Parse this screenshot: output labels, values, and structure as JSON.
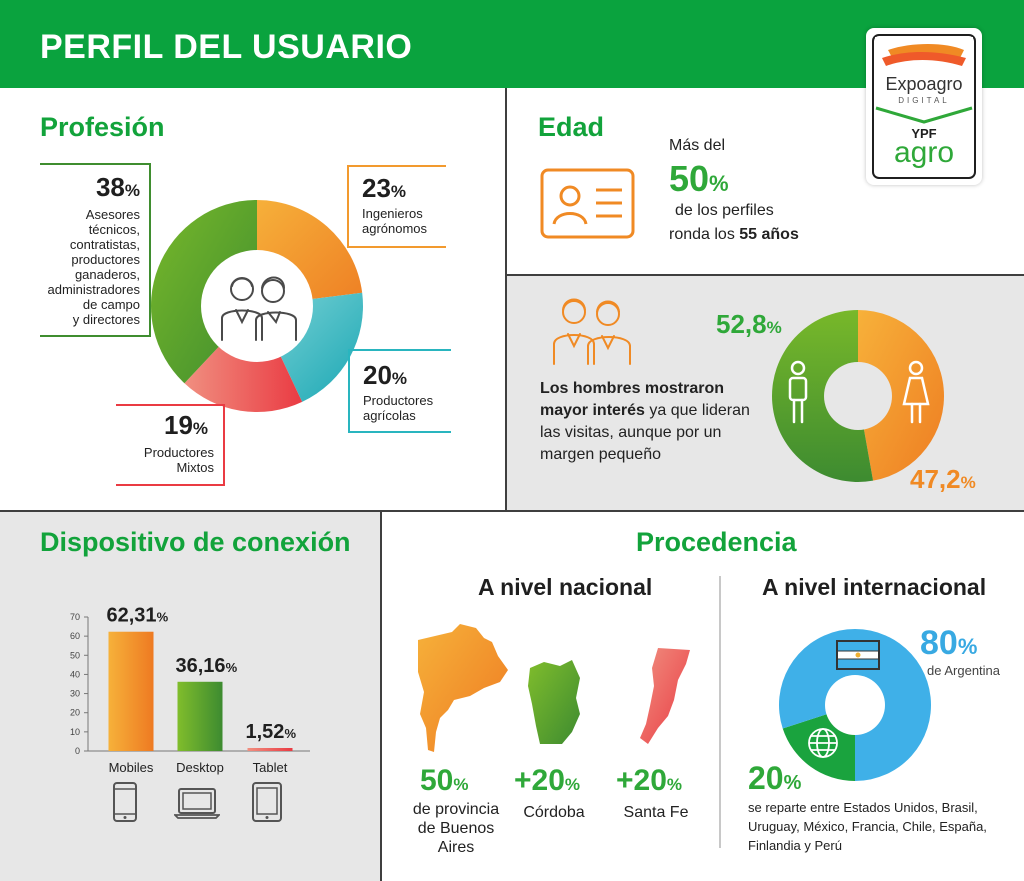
{
  "header": {
    "title": "PERFIL DEL USUARIO"
  },
  "logo": {
    "brand": "Expoagro",
    "sub": "DIGITAL",
    "ypf": "YPF",
    "agro": "agro"
  },
  "profesion": {
    "title": "Profesión",
    "items": [
      {
        "pct": "38",
        "unit": "%",
        "label": [
          "Asesores",
          "técnicos,",
          "contratistas,",
          "productores",
          "ganaderos,",
          "administradores",
          "de campo",
          "y directores"
        ],
        "color": "#5aa52b"
      },
      {
        "pct": "23",
        "unit": "%",
        "label": [
          "Ingenieros",
          "agrónomos"
        ],
        "color": "#f29a2e"
      },
      {
        "pct": "20",
        "unit": "%",
        "label": [
          "Productores",
          "agrícolas"
        ],
        "color": "#29b5bf"
      },
      {
        "pct": "19",
        "unit": "%",
        "label": [
          "Productores",
          "Mixtos"
        ],
        "color": "#ef5a5a"
      }
    ],
    "icon": "people-icon"
  },
  "edad": {
    "title": "Edad",
    "line1": "Más del",
    "pct": "50",
    "unit": "%",
    "line2": "de los perfiles",
    "line3_pre": "ronda los ",
    "line3_bold": "55 años",
    "icon": "id-card-icon"
  },
  "genero": {
    "text_bold": "Los hombres mostraron mayor interés",
    "text_rest": " ya que lideran las visitas, aunque por un margen pequeño",
    "male_pct": "52,8",
    "female_pct": "47,2",
    "unit": "%",
    "icon": "people-icon"
  },
  "dispositivo": {
    "title": "Dispositivo de conexión",
    "icons": [
      "mobile-icon",
      "desktop-icon",
      "tablet-icon"
    ]
  },
  "chart_data": {
    "type": "bar",
    "categories": [
      "Mobiles",
      "Desktop",
      "Tablet"
    ],
    "values": [
      62.31,
      36.16,
      1.52
    ],
    "value_labels": [
      "62,31",
      "36,16",
      "1,52"
    ],
    "unit": "%",
    "yticks": [
      0,
      10,
      20,
      30,
      40,
      50,
      60,
      70
    ],
    "ylim": [
      0,
      70
    ],
    "colors": [
      "#f28b28",
      "#5ea528",
      "#ee5a5a"
    ]
  },
  "procedencia": {
    "title": "Procedencia",
    "nacional": {
      "title": "A nivel nacional",
      "items": [
        {
          "pct": "50",
          "unit": "%",
          "label": [
            "de provincia",
            "de Buenos",
            "Aires"
          ]
        },
        {
          "pct": "+20",
          "unit": "%",
          "label": [
            "Córdoba"
          ]
        },
        {
          "pct": "+20",
          "unit": "%",
          "label": [
            "Santa Fe"
          ]
        }
      ]
    },
    "internacional": {
      "title": "A nivel internacional",
      "arg_pct": "80",
      "arg_label": "de Argentina",
      "other_pct": "20",
      "other_label": [
        "se reparte entre Estados Unidos, Brasil,",
        "Uruguay, México, Francia, Chile, España,",
        "Finlandia y Perú"
      ],
      "unit": "%",
      "icons": [
        "argentina-flag-icon",
        "globe-icon"
      ]
    }
  }
}
